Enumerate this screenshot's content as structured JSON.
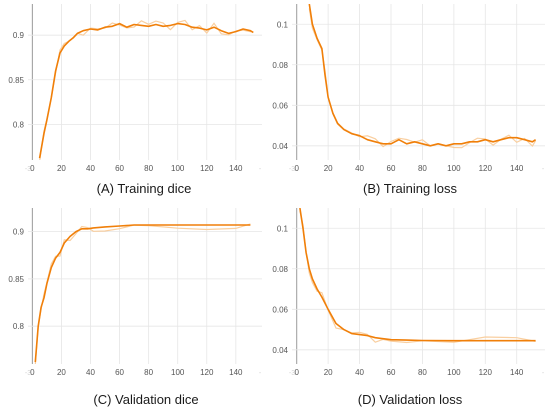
{
  "chart_data": [
    {
      "id": "A",
      "type": "line",
      "title": "(A) Training dice",
      "xlim": [
        -3,
        158
      ],
      "ylim": [
        0.76,
        0.935
      ],
      "xticks": [
        0,
        20,
        40,
        60,
        80,
        100,
        120,
        140
      ],
      "yticks": [
        0.8,
        0.85,
        0.9
      ],
      "ytick_labels": [
        "0.8",
        "0.85",
        "0.9"
      ],
      "edge_labels": [
        "-3",
        "-"
      ],
      "grid": true,
      "series": [
        {
          "line_color": "#f07f09",
          "raw_color": "#f9cfa0",
          "x": [
            5,
            8,
            10,
            13,
            16,
            19,
            22,
            25,
            28,
            31,
            35,
            40,
            45,
            50,
            55,
            60,
            65,
            70,
            75,
            80,
            85,
            90,
            95,
            100,
            105,
            110,
            115,
            120,
            125,
            130,
            135,
            140,
            145,
            150,
            152
          ],
          "y": [
            0.762,
            0.79,
            0.805,
            0.83,
            0.86,
            0.88,
            0.888,
            0.893,
            0.897,
            0.902,
            0.905,
            0.907,
            0.906,
            0.909,
            0.91,
            0.913,
            0.909,
            0.912,
            0.911,
            0.91,
            0.912,
            0.91,
            0.911,
            0.913,
            0.912,
            0.909,
            0.908,
            0.906,
            0.909,
            0.905,
            0.902,
            0.904,
            0.907,
            0.905,
            0.903
          ]
        }
      ]
    },
    {
      "id": "B",
      "type": "line",
      "title": "(B) Training loss",
      "xlim": [
        -3,
        158
      ],
      "ylim": [
        0.033,
        0.11
      ],
      "xticks": [
        0,
        20,
        40,
        60,
        80,
        100,
        120,
        140
      ],
      "yticks": [
        0.04,
        0.06,
        0.08,
        0.1
      ],
      "ytick_labels": [
        "0.04",
        "0.06",
        "0.08",
        "0.1"
      ],
      "edge_labels": [
        "-3",
        "-"
      ],
      "grid": true,
      "series": [
        {
          "line_color": "#f07f09",
          "raw_color": "#f9cfa0",
          "x": [
            8,
            10,
            13,
            16,
            18,
            20,
            23,
            26,
            30,
            35,
            40,
            45,
            50,
            55,
            60,
            65,
            70,
            75,
            80,
            85,
            90,
            95,
            100,
            105,
            110,
            115,
            120,
            125,
            130,
            135,
            140,
            145,
            150,
            152
          ],
          "y": [
            0.11,
            0.1,
            0.093,
            0.088,
            0.075,
            0.064,
            0.056,
            0.051,
            0.048,
            0.046,
            0.045,
            0.043,
            0.042,
            0.041,
            0.041,
            0.043,
            0.041,
            0.042,
            0.041,
            0.04,
            0.041,
            0.04,
            0.041,
            0.041,
            0.042,
            0.042,
            0.043,
            0.042,
            0.043,
            0.044,
            0.044,
            0.043,
            0.042,
            0.043
          ]
        }
      ]
    },
    {
      "id": "C",
      "type": "line",
      "title": "(C) Validation dice",
      "xlim": [
        -3,
        158
      ],
      "ylim": [
        0.76,
        0.925
      ],
      "xticks": [
        0,
        20,
        40,
        60,
        80,
        100,
        120,
        140
      ],
      "yticks": [
        0.8,
        0.85,
        0.9
      ],
      "ytick_labels": [
        "0.8",
        "0.85",
        "0.9"
      ],
      "edge_labels": [
        "-3",
        "-"
      ],
      "grid": true,
      "series": [
        {
          "line_color": "#f07f09",
          "raw_color": "#f9cfa0",
          "x": [
            2,
            4,
            6,
            8,
            10,
            13,
            16,
            19,
            22,
            26,
            30,
            34,
            38,
            42,
            50,
            60,
            70,
            80,
            100,
            120,
            140,
            150
          ],
          "y": [
            0.762,
            0.8,
            0.82,
            0.83,
            0.845,
            0.862,
            0.872,
            0.878,
            0.888,
            0.895,
            0.9,
            0.903,
            0.903,
            0.904,
            0.905,
            0.906,
            0.907,
            0.907,
            0.907,
            0.907,
            0.907,
            0.907
          ]
        }
      ]
    },
    {
      "id": "D",
      "type": "line",
      "title": "(D) Validation loss",
      "xlim": [
        -3,
        158
      ],
      "ylim": [
        0.033,
        0.11
      ],
      "xticks": [
        0,
        20,
        40,
        60,
        80,
        100,
        120,
        140
      ],
      "yticks": [
        0.04,
        0.06,
        0.08,
        0.1
      ],
      "ytick_labels": [
        "0.04",
        "0.06",
        "0.08",
        "0.1"
      ],
      "edge_labels": [
        "-3",
        "-"
      ],
      "grid": true,
      "series": [
        {
          "line_color": "#f07f09",
          "raw_color": "#f9cfa0",
          "x": [
            2,
            4,
            6,
            8,
            10,
            13,
            16,
            20,
            25,
            30,
            35,
            40,
            45,
            50,
            55,
            60,
            70,
            80,
            100,
            120,
            140,
            152
          ],
          "y": [
            0.11,
            0.1,
            0.088,
            0.08,
            0.075,
            0.07,
            0.066,
            0.06,
            0.053,
            0.05,
            0.048,
            0.0475,
            0.047,
            0.046,
            0.0455,
            0.045,
            0.0448,
            0.0446,
            0.0445,
            0.0445,
            0.0445,
            0.0445
          ]
        }
      ]
    }
  ]
}
